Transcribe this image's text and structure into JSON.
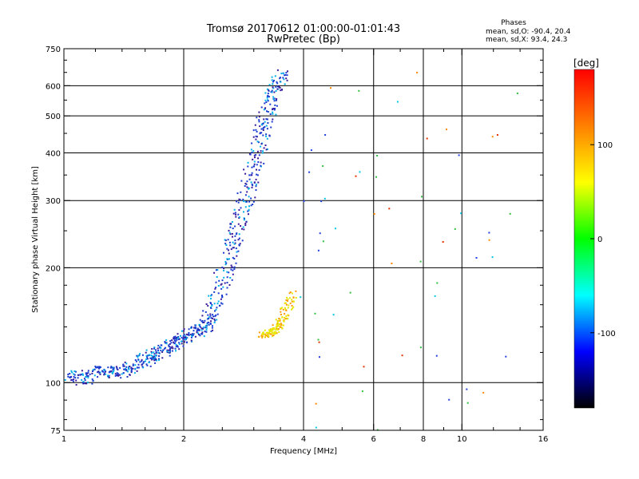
{
  "chart_data": {
    "type": "scatter",
    "title": "Tromsø 20170612 01:00:00-01:01:43",
    "subtitle": "RwPretec (Bp)",
    "phases_header": "Phases",
    "phase_stats": [
      "mean, sd,O: -90.4, 20.4",
      "mean, sd,X:  93.4, 24.3"
    ],
    "xlabel": "Frequency [MHz]",
    "ylabel": "Stationary phase Virtual Height [km]",
    "x_scale": "log",
    "y_scale": "log",
    "xlim": [
      1,
      16
    ],
    "ylim": [
      75,
      750
    ],
    "x_ticks": [
      1,
      2,
      4,
      6,
      8,
      10,
      16
    ],
    "x_minor_ticks": [
      1.2,
      1.4,
      1.6,
      1.8,
      2.5,
      3,
      3.5,
      5,
      7,
      9,
      12,
      14
    ],
    "y_ticks": [
      75,
      100,
      200,
      300,
      400,
      500,
      600,
      750
    ],
    "y_minor_ticks": [
      80,
      90,
      120,
      140,
      160,
      180,
      250,
      350,
      450,
      550,
      650,
      700
    ],
    "x_grid": [
      2,
      4,
      6,
      8,
      10
    ],
    "y_grid": [
      100,
      200,
      300,
      400,
      500,
      600
    ],
    "grid": true,
    "colorbar": {
      "label": "[deg]",
      "range": [
        -180,
        180
      ],
      "ticks": [
        100,
        0,
        -100
      ],
      "stops": [
        "#ff0000",
        "#ff8000",
        "#ffff00",
        "#00ff00",
        "#00ffff",
        "#0000ff",
        "#000000"
      ]
    },
    "trace_colors": {
      "o_mode": "#1a3cd0",
      "o_mode_dark": "#3a1a9a",
      "o_mode_light": "#00b0e8",
      "x_mode": "#e6e600",
      "x_mode_orange": "#ff9900",
      "scattered": [
        "#e63000",
        "#ff8800",
        "#30c040",
        "#00c8e0",
        "#2040e0"
      ]
    },
    "series": [
      {
        "mode": "O",
        "points": [
          [
            1.05,
            105
          ],
          [
            1.08,
            103
          ],
          [
            1.1,
            101
          ],
          [
            1.15,
            103
          ],
          [
            1.2,
            107
          ],
          [
            1.25,
            107
          ],
          [
            1.3,
            106
          ],
          [
            1.35,
            106
          ],
          [
            1.4,
            107
          ],
          [
            1.45,
            108
          ],
          [
            1.5,
            110
          ],
          [
            1.55,
            112
          ],
          [
            1.6,
            115
          ],
          [
            1.65,
            117
          ],
          [
            1.7,
            118
          ],
          [
            1.75,
            120
          ],
          [
            1.8,
            122
          ],
          [
            1.85,
            124
          ],
          [
            1.9,
            126
          ],
          [
            1.95,
            128
          ],
          [
            2.0,
            130
          ],
          [
            2.05,
            132
          ],
          [
            2.1,
            134
          ],
          [
            2.15,
            136
          ],
          [
            2.2,
            138
          ],
          [
            2.25,
            140
          ],
          [
            2.3,
            145
          ],
          [
            2.35,
            150
          ],
          [
            2.4,
            158
          ],
          [
            2.45,
            170
          ],
          [
            2.5,
            185
          ],
          [
            2.55,
            200
          ],
          [
            2.6,
            215
          ],
          [
            2.65,
            230
          ],
          [
            2.7,
            245
          ],
          [
            2.75,
            260
          ],
          [
            2.8,
            280
          ],
          [
            2.85,
            300
          ],
          [
            2.9,
            320
          ],
          [
            2.95,
            345
          ],
          [
            3.0,
            370
          ],
          [
            3.05,
            395
          ],
          [
            3.1,
            420
          ],
          [
            3.15,
            450
          ],
          [
            3.2,
            480
          ],
          [
            3.25,
            510
          ],
          [
            3.3,
            540
          ],
          [
            3.35,
            570
          ],
          [
            3.4,
            600
          ],
          [
            3.45,
            625
          ],
          [
            3.5,
            645
          ]
        ]
      },
      {
        "mode": "X",
        "points": [
          [
            3.15,
            132
          ],
          [
            3.2,
            133
          ],
          [
            3.25,
            134
          ],
          [
            3.3,
            135
          ],
          [
            3.35,
            136
          ],
          [
            3.4,
            138
          ],
          [
            3.45,
            140
          ],
          [
            3.5,
            143
          ],
          [
            3.55,
            147
          ],
          [
            3.6,
            152
          ],
          [
            3.65,
            158
          ],
          [
            3.7,
            165
          ],
          [
            3.75,
            172
          ]
        ]
      }
    ]
  }
}
